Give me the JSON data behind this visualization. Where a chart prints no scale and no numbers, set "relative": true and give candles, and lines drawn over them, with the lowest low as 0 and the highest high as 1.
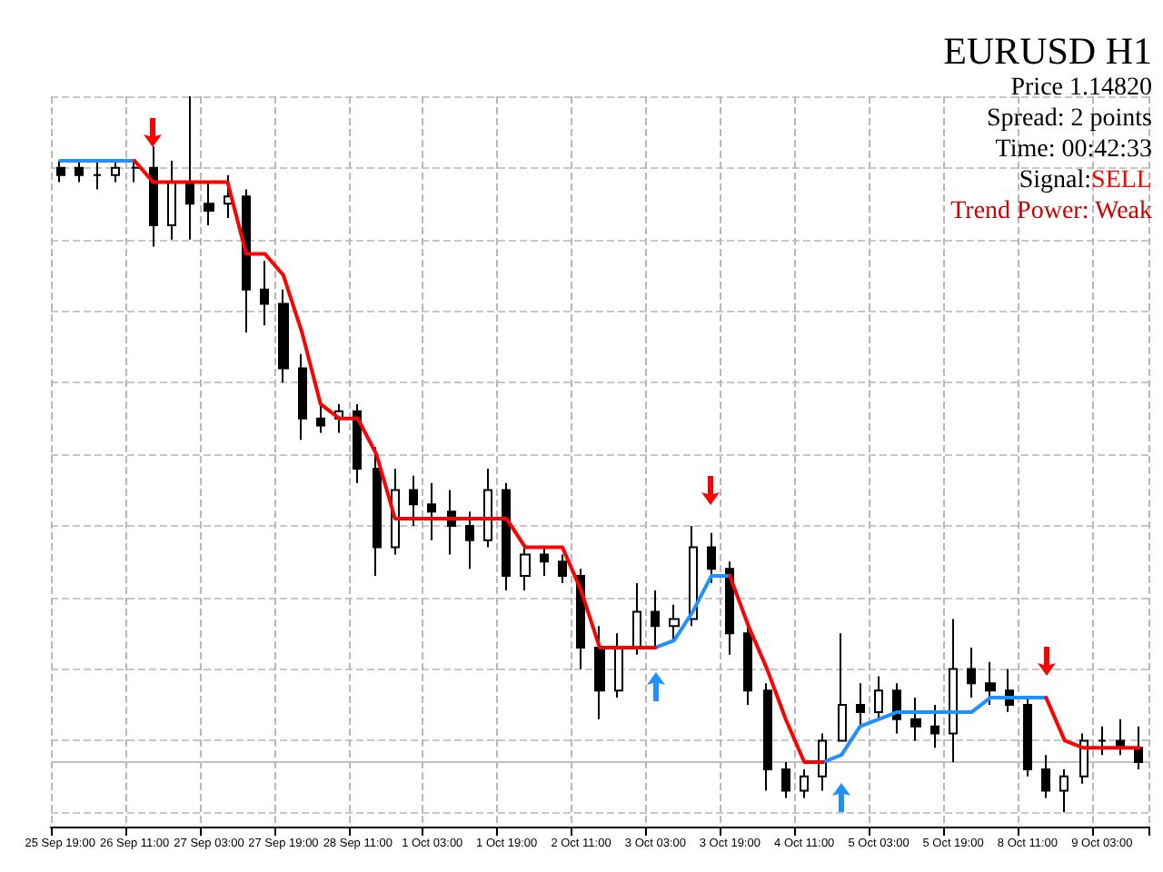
{
  "chart_data": {
    "type": "candlestick",
    "title": "EURUSD H1",
    "relative": true,
    "grid": true,
    "color": "#000000",
    "annotations": [
      "Price 1.14820",
      "Spread: 2 points",
      "Time: 00:42:33",
      "Signal:",
      "SELL",
      "Trend Power: Weak"
    ],
    "categories": [
      "25 Sep 19:00",
      null,
      null,
      null,
      "26 Sep 11:00",
      null,
      null,
      null,
      "27 Sep 03:00",
      null,
      null,
      null,
      "27 Sep 19:00",
      null,
      null,
      null,
      "28 Sep 11:00",
      null,
      null,
      null,
      "1 Oct 03:00",
      null,
      null,
      null,
      "1 Oct 19:00",
      null,
      null,
      null,
      "2 Oct 11:00",
      null,
      null,
      null,
      "3 Oct 03:00",
      null,
      null,
      null,
      "3 Oct 19:00",
      null,
      null,
      null,
      "4 Oct 11:00",
      null,
      null,
      null,
      "5 Oct 03:00",
      null,
      null,
      null,
      "5 Oct 19:00",
      null,
      null,
      null,
      "8 Oct 11:00",
      null,
      null,
      null,
      "9 Oct 03:00",
      null,
      null
    ],
    "ohlc": [
      [
        0.9,
        0.91,
        0.88,
        0.89
      ],
      [
        0.9,
        0.91,
        0.88,
        0.89
      ],
      [
        0.89,
        0.91,
        0.87,
        0.89
      ],
      [
        0.89,
        0.91,
        0.88,
        0.9
      ],
      [
        0.9,
        0.91,
        0.88,
        0.9
      ],
      [
        0.9,
        0.93,
        0.79,
        0.82
      ],
      [
        0.82,
        0.91,
        0.8,
        0.88
      ],
      [
        0.88,
        1,
        0.8,
        0.85
      ],
      [
        0.85,
        0.88,
        0.82,
        0.84
      ],
      [
        0.85,
        0.89,
        0.83,
        0.86
      ],
      [
        0.86,
        0.87,
        0.67,
        0.73
      ],
      [
        0.73,
        0.77,
        0.68,
        0.71
      ],
      [
        0.71,
        0.73,
        0.6,
        0.62
      ],
      [
        0.62,
        0.64,
        0.52,
        0.55
      ],
      [
        0.55,
        0.57,
        0.53,
        0.54
      ],
      [
        0.55,
        0.57,
        0.53,
        0.56
      ],
      [
        0.56,
        0.57,
        0.46,
        0.48
      ],
      [
        0.48,
        0.51,
        0.33,
        0.37
      ],
      [
        0.37,
        0.48,
        0.36,
        0.45
      ],
      [
        0.45,
        0.47,
        0.4,
        0.43
      ],
      [
        0.43,
        0.46,
        0.38,
        0.42
      ],
      [
        0.42,
        0.45,
        0.36,
        0.4
      ],
      [
        0.4,
        0.42,
        0.34,
        0.38
      ],
      [
        0.38,
        0.48,
        0.37,
        0.45
      ],
      [
        0.45,
        0.46,
        0.31,
        0.33
      ],
      [
        0.33,
        0.37,
        0.31,
        0.36
      ],
      [
        0.36,
        0.37,
        0.33,
        0.35
      ],
      [
        0.35,
        0.36,
        0.32,
        0.33
      ],
      [
        0.33,
        0.34,
        0.2,
        0.23
      ],
      [
        0.23,
        0.26,
        0.13,
        0.17
      ],
      [
        0.17,
        0.25,
        0.16,
        0.23
      ],
      [
        0.23,
        0.32,
        0.22,
        0.28
      ],
      [
        0.28,
        0.31,
        0.23,
        0.26
      ],
      [
        0.26,
        0.29,
        0.24,
        0.27
      ],
      [
        0.27,
        0.4,
        0.26,
        0.37
      ],
      [
        0.37,
        0.39,
        0.32,
        0.34
      ],
      [
        0.34,
        0.35,
        0.22,
        0.25
      ],
      [
        0.25,
        0.26,
        0.15,
        0.17
      ],
      [
        0.17,
        0.18,
        0.03,
        0.06
      ],
      [
        0.06,
        0.07,
        0.02,
        0.03
      ],
      [
        0.03,
        0.06,
        0.02,
        0.05
      ],
      [
        0.05,
        0.11,
        0.03,
        0.1
      ],
      [
        0.1,
        0.25,
        0.1,
        0.15
      ],
      [
        0.15,
        0.18,
        0.12,
        0.14
      ],
      [
        0.14,
        0.19,
        0.13,
        0.17
      ],
      [
        0.17,
        0.18,
        0.11,
        0.13
      ],
      [
        0.13,
        0.16,
        0.1,
        0.12
      ],
      [
        0.12,
        0.15,
        0.09,
        0.11
      ],
      [
        0.11,
        0.27,
        0.07,
        0.2
      ],
      [
        0.2,
        0.23,
        0.16,
        0.18
      ],
      [
        0.18,
        0.21,
        0.15,
        0.17
      ],
      [
        0.17,
        0.2,
        0.14,
        0.15
      ],
      [
        0.15,
        0.16,
        0.05,
        0.06
      ],
      [
        0.06,
        0.08,
        0.02,
        0.03
      ],
      [
        0.03,
        0.06,
        0,
        0.05
      ],
      [
        0.05,
        0.11,
        0.04,
        0.1
      ],
      [
        0.1,
        0.12,
        0.08,
        0.1
      ],
      [
        0.1,
        0.13,
        0.08,
        0.09
      ],
      [
        0.09,
        0.12,
        0.06,
        0.07
      ]
    ],
    "series": [
      {
        "type": "line",
        "color": "#1e90ff",
        "values": [
          0.91,
          0.91,
          0.91,
          0.91,
          0.91,
          null,
          null,
          null,
          null,
          null,
          null,
          null,
          null,
          null,
          null,
          null,
          null,
          null,
          null,
          null,
          null,
          null,
          null,
          null,
          null,
          null,
          null,
          null,
          null,
          null,
          null,
          null,
          0.23,
          0.24,
          0.28,
          0.33,
          0.33,
          null,
          null,
          null,
          null,
          0.07,
          0.08,
          0.12,
          0.13,
          0.14,
          0.14,
          0.14,
          0.14,
          0.14,
          0.16,
          0.16,
          0.16,
          0.16,
          null,
          null,
          null,
          null,
          null
        ]
      },
      {
        "type": "line",
        "color": "#ff0000",
        "values": [
          null,
          null,
          null,
          null,
          0.91,
          0.88,
          0.88,
          0.88,
          0.88,
          0.88,
          0.78,
          0.78,
          0.75,
          0.67,
          0.57,
          0.55,
          0.55,
          0.5,
          0.41,
          0.41,
          0.41,
          0.41,
          0.41,
          0.41,
          0.41,
          0.37,
          0.37,
          0.37,
          0.31,
          0.23,
          0.23,
          0.23,
          0.23,
          null,
          null,
          null,
          0.33,
          0.26,
          0.2,
          0.13,
          0.07,
          0.07,
          null,
          null,
          null,
          null,
          null,
          null,
          null,
          null,
          null,
          null,
          null,
          0.16,
          0.1,
          0.09,
          0.09,
          0.09,
          0.09
        ]
      }
    ],
    "ref_lines": [
      {
        "axis": "y",
        "value": 0.07,
        "color": "#c0c0c0"
      }
    ]
  }
}
